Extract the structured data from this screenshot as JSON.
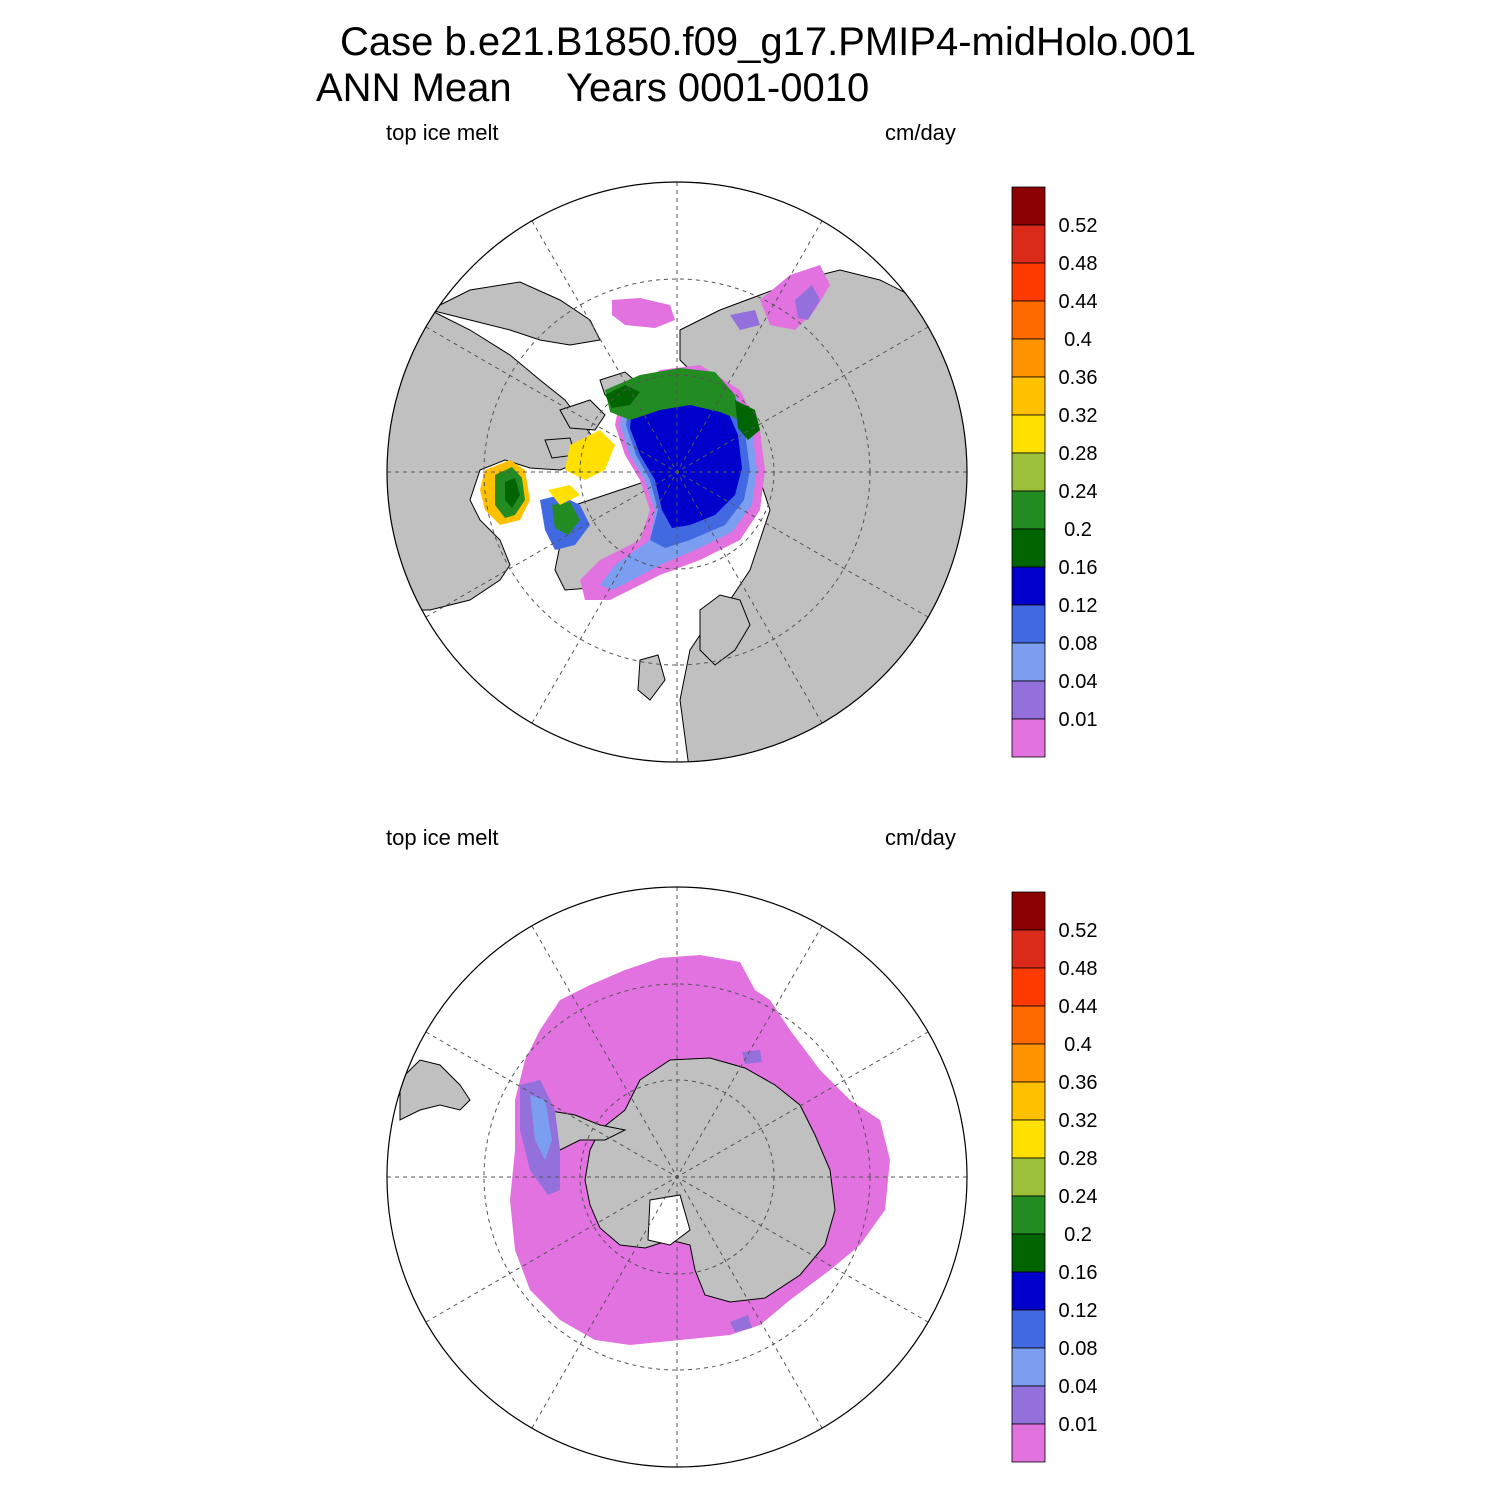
{
  "title": {
    "line1": "Case b.e21.B1850.f09_g17.PMIP4-midHolo.001",
    "line2_left": "ANN Mean",
    "line2_right": "Years 0001-0010"
  },
  "colorbar": {
    "labels": [
      "0.52",
      "0.48",
      "0.44",
      "0.4",
      "0.36",
      "0.32",
      "0.28",
      "0.24",
      "0.2",
      "0.16",
      "0.12",
      "0.08",
      "0.04",
      "0.01"
    ],
    "colors": [
      "#8b0000",
      "#dc2a1a",
      "#ff3a00",
      "#ff6a00",
      "#ff9400",
      "#ffc000",
      "#ffe000",
      "#9cc03a",
      "#228b22",
      "#006400",
      "#0000cd",
      "#4169e1",
      "#7b9ef0",
      "#9370db",
      "#e272e0"
    ]
  },
  "colors": {
    "land": "#c0c0c0",
    "ocean": "#ffffff",
    "grid": "#555555"
  },
  "panels": [
    {
      "id": "north",
      "hemisphere": "Northern Hemisphere",
      "left_label": "top ice melt",
      "right_label": "cm/day"
    },
    {
      "id": "south",
      "hemisphere": "Southern Hemisphere",
      "left_label": "top ice melt",
      "right_label": "cm/day"
    }
  ]
}
